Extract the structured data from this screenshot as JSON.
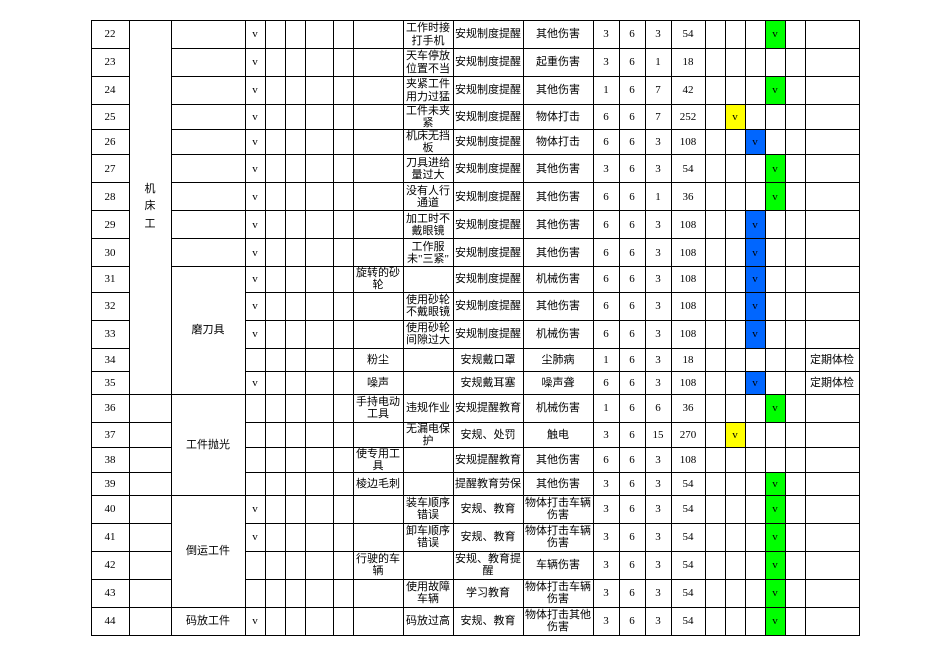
{
  "category_labels": {
    "machine": "机\n床\n工",
    "grind": "磨刀具",
    "polish": "工件抛光",
    "transport": "倒运工件",
    "stack": "码放工件"
  },
  "rows": [
    {
      "n": "22",
      "v": "v",
      "c9": "工作时接打手机",
      "c10": "安规制度提醒",
      "c11": "其他伤害",
      "d": [
        "3",
        "6",
        "3",
        "54"
      ],
      "m": {
        "19": "g"
      }
    },
    {
      "n": "23",
      "v": "v",
      "c9": "天车停放位置不当",
      "c10": "安规制度提醒",
      "c11": "起重伤害",
      "d": [
        "3",
        "6",
        "1",
        "18"
      ]
    },
    {
      "n": "24",
      "v": "v",
      "c9": "夹紧工件用力过猛",
      "c10": "安规制度提醒",
      "c11": "其他伤害",
      "d": [
        "1",
        "6",
        "7",
        "42"
      ],
      "m": {
        "19": "g"
      }
    },
    {
      "n": "25",
      "v": "v",
      "c9": "工件未夹紧",
      "c10": "安规制度提醒",
      "c11": "物体打击",
      "d": [
        "6",
        "6",
        "7",
        "252"
      ],
      "m": {
        "17": "y"
      }
    },
    {
      "n": "26",
      "v": "v",
      "c9": "机床无挡板",
      "c10": "安规制度提醒",
      "c11": "物体打击",
      "d": [
        "6",
        "6",
        "3",
        "108"
      ],
      "m": {
        "18": "b"
      }
    },
    {
      "n": "27",
      "v": "v",
      "c9": "刀具进给量过大",
      "c10": "安规制度提醒",
      "c11": "其他伤害",
      "d": [
        "3",
        "6",
        "3",
        "54"
      ],
      "m": {
        "19": "g"
      }
    },
    {
      "n": "28",
      "v": "v",
      "c9": "没有人行通道",
      "c10": "安规制度提醒",
      "c11": "其他伤害",
      "d": [
        "6",
        "6",
        "1",
        "36"
      ],
      "m": {
        "19": "g"
      }
    },
    {
      "n": "29",
      "v": "v",
      "c9": "加工时不戴眼镜",
      "c10": "安规制度提醒",
      "c11": "其他伤害",
      "d": [
        "6",
        "6",
        "3",
        "108"
      ],
      "m": {
        "18": "b"
      }
    },
    {
      "n": "30",
      "v": "v",
      "c9": "工作服未\"三紧\"",
      "c10": "安规制度提醒",
      "c11": "其他伤害",
      "d": [
        "6",
        "6",
        "3",
        "108"
      ],
      "m": {
        "18": "b"
      }
    },
    {
      "n": "31",
      "v": "v",
      "c8": "旋转的砂轮",
      "c10": "安规制度提醒",
      "c11": "机械伤害",
      "d": [
        "6",
        "6",
        "3",
        "108"
      ],
      "m": {
        "18": "b"
      }
    },
    {
      "n": "32",
      "v": "v",
      "c9": "使用砂轮不戴眼镜",
      "c10": "安规制度提醒",
      "c11": "其他伤害",
      "d": [
        "6",
        "6",
        "3",
        "108"
      ],
      "m": {
        "18": "b"
      }
    },
    {
      "n": "33",
      "v": "v",
      "c9": "使用砂轮间隙过大",
      "c10": "安规制度提醒",
      "c11": "机械伤害",
      "d": [
        "6",
        "6",
        "3",
        "108"
      ],
      "m": {
        "18": "b"
      }
    },
    {
      "n": "34",
      "c8": "粉尘",
      "c10": "安规戴口罩",
      "c11": "尘肺病",
      "d": [
        "1",
        "6",
        "3",
        "18"
      ],
      "c21": "定期体检"
    },
    {
      "n": "35",
      "v": "v",
      "c8": "噪声",
      "c10": "安规戴耳塞",
      "c11": "噪声聋",
      "d": [
        "6",
        "6",
        "3",
        "108"
      ],
      "m": {
        "18": "b"
      },
      "c21": "定期体检"
    },
    {
      "n": "36",
      "c8": "手持电动工具",
      "c9": "违规作业",
      "c10": "安规提醒教育",
      "c11": "机械伤害",
      "d": [
        "1",
        "6",
        "6",
        "36"
      ],
      "m": {
        "19": "g"
      }
    },
    {
      "n": "37",
      "c9": "无漏电保护",
      "c10": "安规、处罚",
      "c11": "触电",
      "d": [
        "3",
        "6",
        "15",
        "270"
      ],
      "m": {
        "17": "y"
      }
    },
    {
      "n": "38",
      "c8": "使专用工具",
      "c10": "安规提醒教育",
      "c11": "其他伤害",
      "d": [
        "6",
        "6",
        "3",
        "108"
      ]
    },
    {
      "n": "39",
      "c8": "棱边毛刺",
      "c10": "提醒教育劳保",
      "c11": "其他伤害",
      "d": [
        "3",
        "6",
        "3",
        "54"
      ],
      "m": {
        "19": "g"
      }
    },
    {
      "n": "40",
      "v": "v",
      "c9": "装车顺序错误",
      "c10": "安规、教育",
      "c11": "物体打击车辆伤害",
      "d": [
        "3",
        "6",
        "3",
        "54"
      ],
      "m": {
        "19": "g"
      }
    },
    {
      "n": "41",
      "v": "v",
      "c9": "卸车顺序错误",
      "c10": "安规、教育",
      "c11": "物体打击车辆伤害",
      "d": [
        "3",
        "6",
        "3",
        "54"
      ],
      "m": {
        "19": "g"
      }
    },
    {
      "n": "42",
      "c8": "行驶的车辆",
      "c10": "安规、教育提醒",
      "c11": "车辆伤害",
      "d": [
        "3",
        "6",
        "3",
        "54"
      ],
      "m": {
        "19": "g"
      }
    },
    {
      "n": "43",
      "c9": "使用故障车辆",
      "c10": "学习教育",
      "c11": "物体打击车辆伤害",
      "d": [
        "3",
        "6",
        "3",
        "54"
      ],
      "m": {
        "19": "g"
      }
    },
    {
      "n": "44",
      "v": "v",
      "c9": "码放过高",
      "c10": "安规、教育",
      "c11": "物体打击其他伤害",
      "d": [
        "3",
        "6",
        "3",
        "54"
      ],
      "m": {
        "19": "g"
      }
    }
  ],
  "color_map": {
    "g": "green",
    "b": "blue",
    "y": "yellow"
  },
  "v_text": "v"
}
